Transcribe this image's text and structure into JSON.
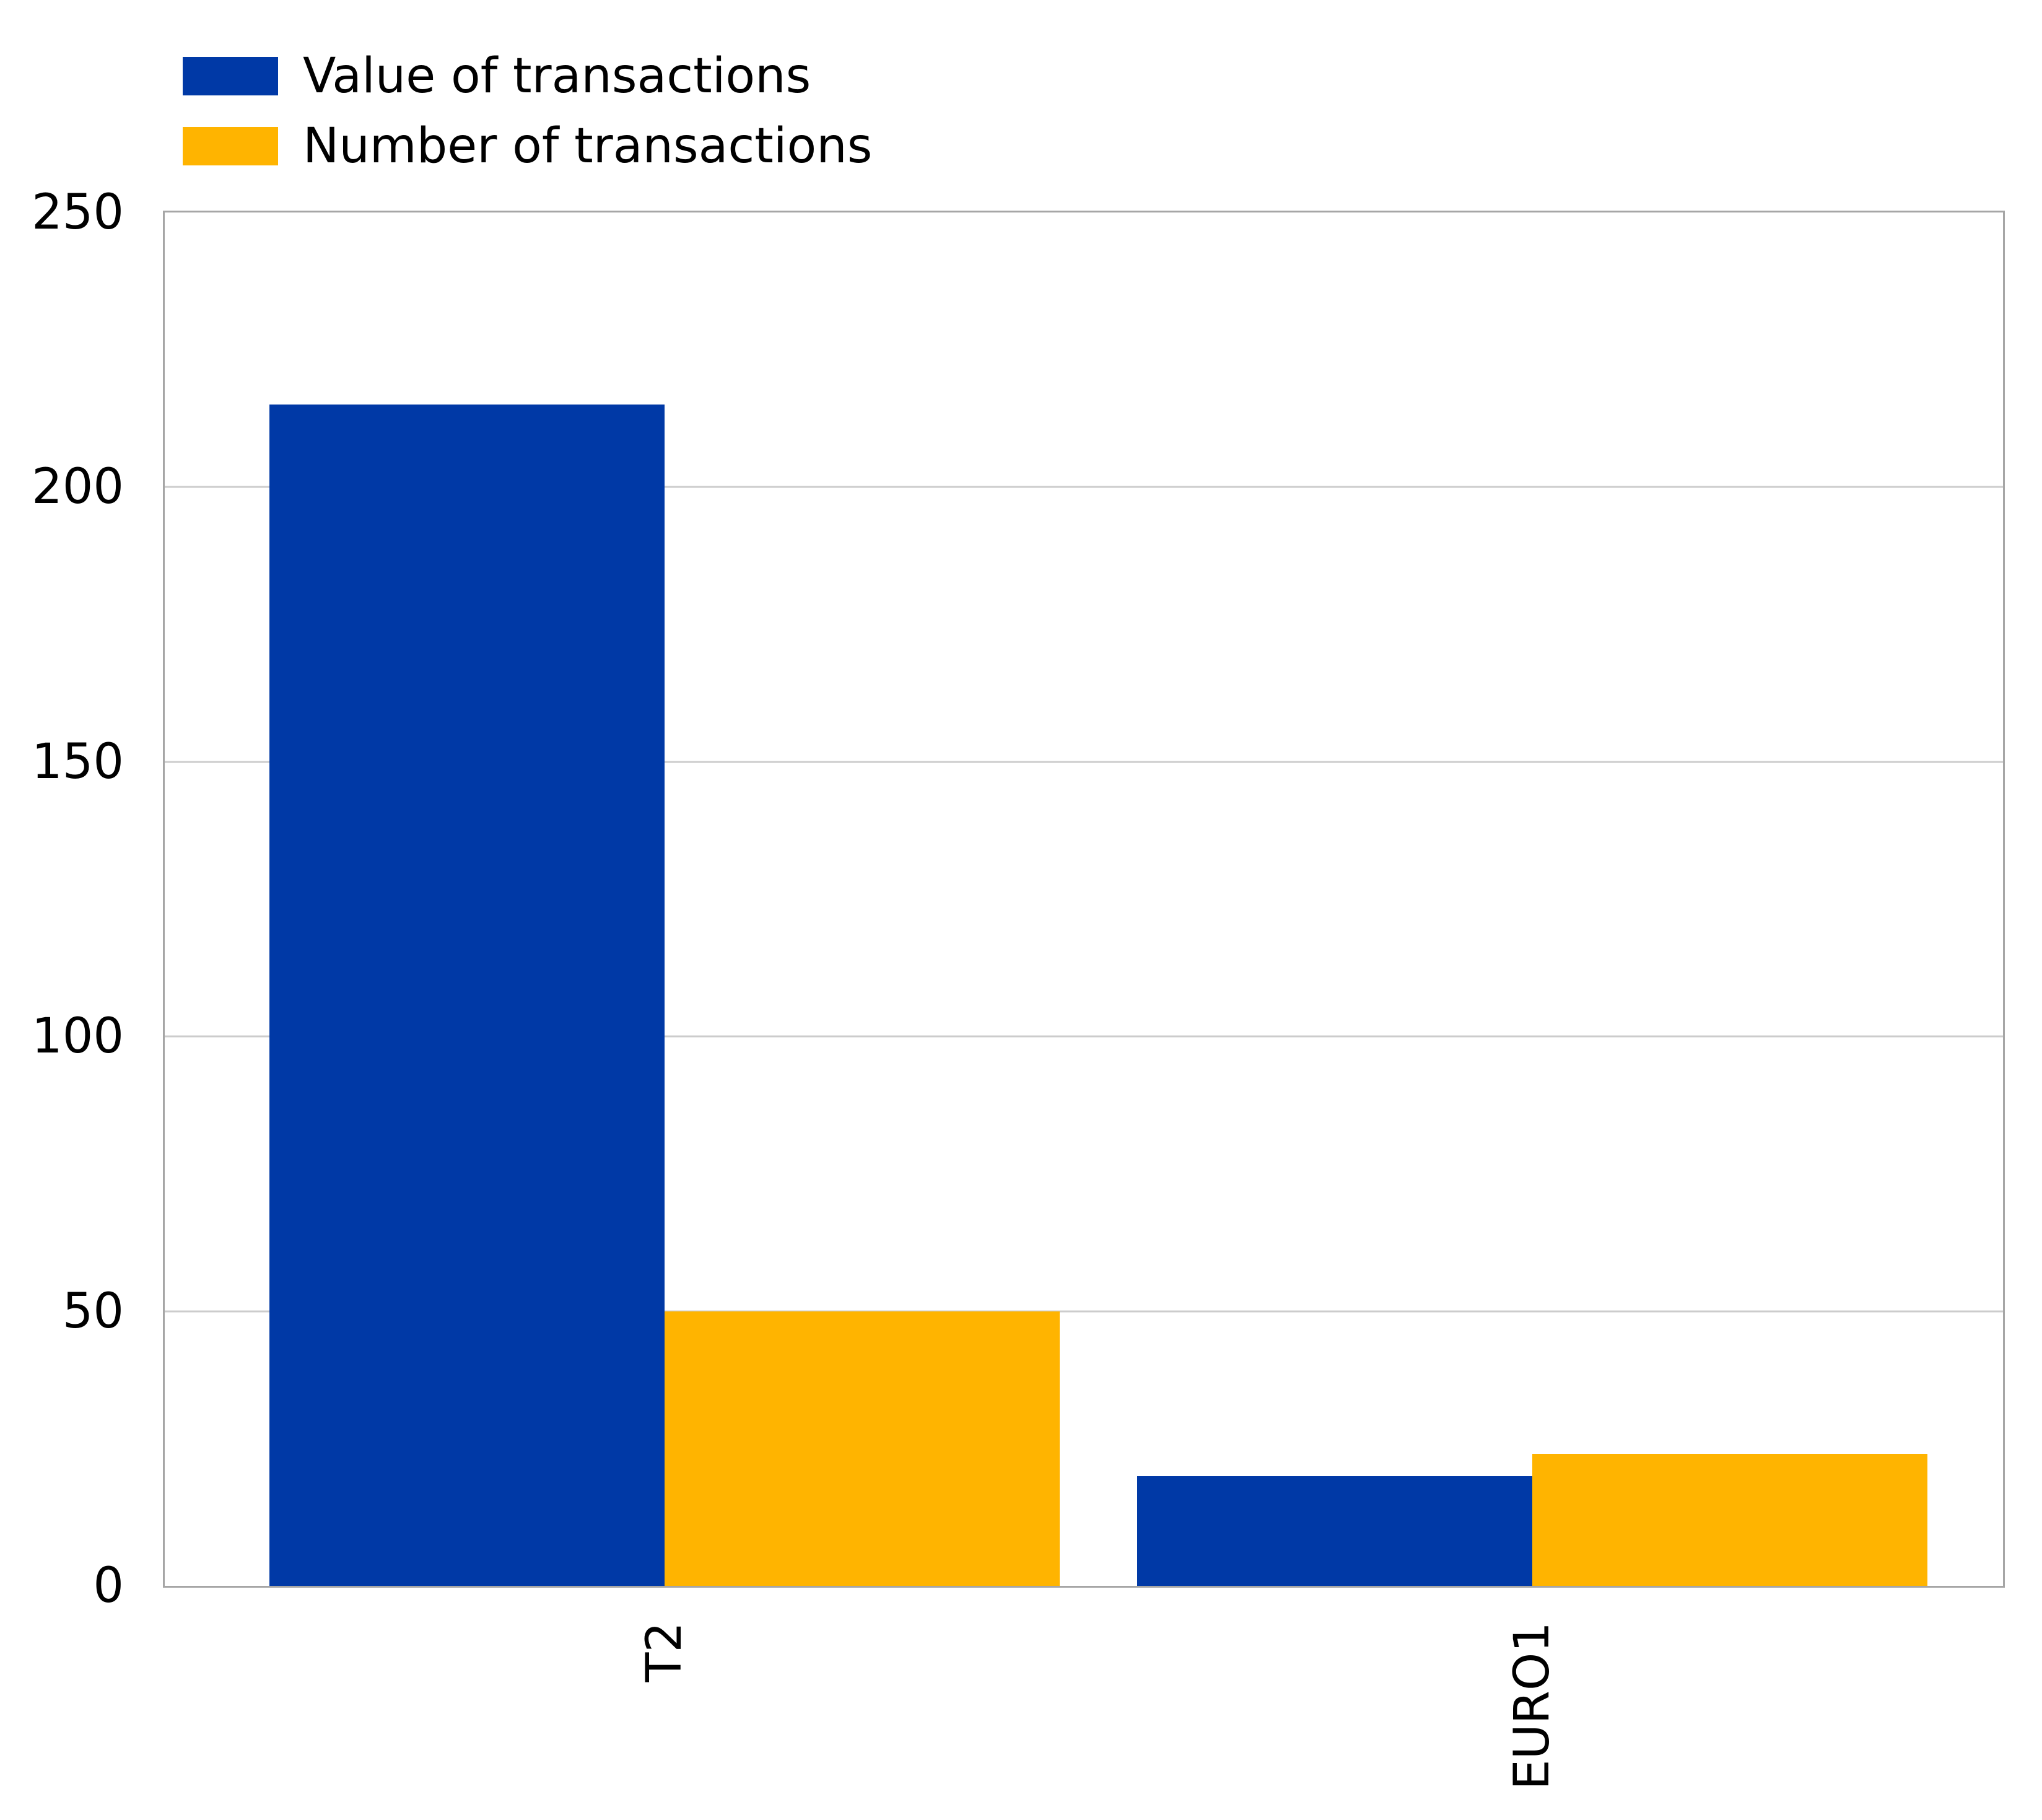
{
  "chart_data": {
    "type": "bar",
    "title": "",
    "xlabel": "",
    "ylabel": "",
    "categories": [
      "T2",
      "EURO1"
    ],
    "series": [
      {
        "name": "Value of transactions",
        "color": "#0039A6",
        "values": [
          215,
          20
        ]
      },
      {
        "name": "Number of transactions",
        "color": "#FFB400",
        "values": [
          50,
          24
        ]
      }
    ],
    "ylim": [
      0,
      250
    ],
    "yticks": [
      0,
      50,
      100,
      150,
      200,
      250
    ],
    "grid": "horizontal",
    "gridline_color": "#cccccc",
    "axis_box_color": "#a6a6a6",
    "tick_label_color": "#000000",
    "legend_position": "upper-left",
    "xtick_rotation_deg": 90
  }
}
